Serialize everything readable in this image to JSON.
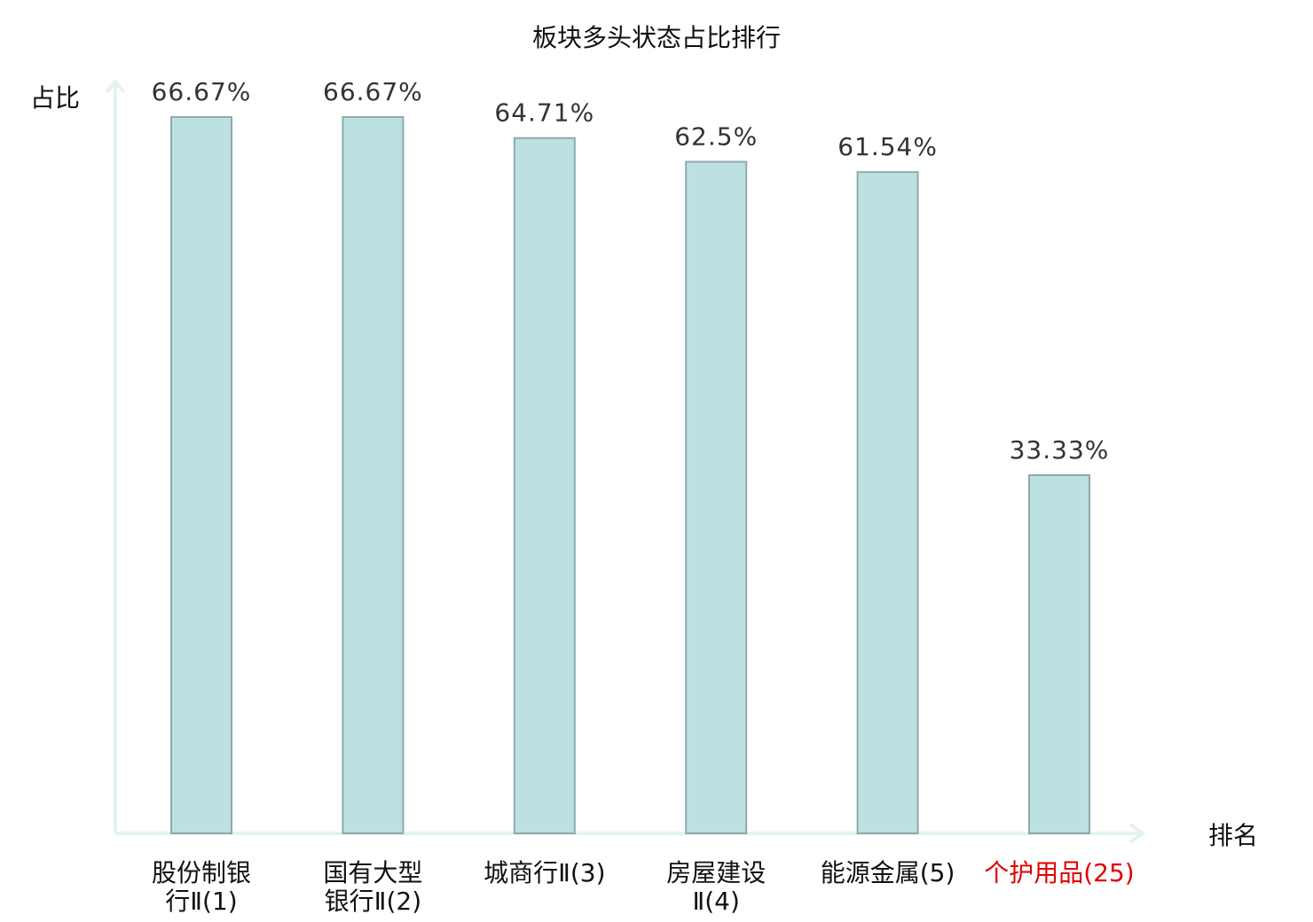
{
  "chart_data": {
    "type": "bar",
    "title": "板块多头状态占比排行",
    "xlabel": "排名",
    "ylabel": "占比",
    "ylim": [
      0,
      70
    ],
    "grid": false,
    "categories": [
      [
        "股份制银",
        "行Ⅱ(1)"
      ],
      [
        "国有大型",
        "银行Ⅱ(2)"
      ],
      [
        "城商行Ⅱ(3)"
      ],
      [
        "房屋建设",
        "Ⅱ(4)"
      ],
      [
        "能源金属(5)"
      ],
      [
        "个护用品(25)"
      ]
    ],
    "values": [
      66.67,
      66.67,
      64.71,
      62.5,
      61.54,
      33.33
    ],
    "value_labels": [
      "66.67%",
      "66.67%",
      "64.71%",
      "62.5%",
      "61.54%",
      "33.33%"
    ],
    "highlight_index": 5,
    "colors": {
      "bar_fill": "#bde0e3",
      "bar_stroke": "#8eaaad",
      "axis": "#e3f3f0",
      "highlight_text": "#e00000"
    }
  }
}
